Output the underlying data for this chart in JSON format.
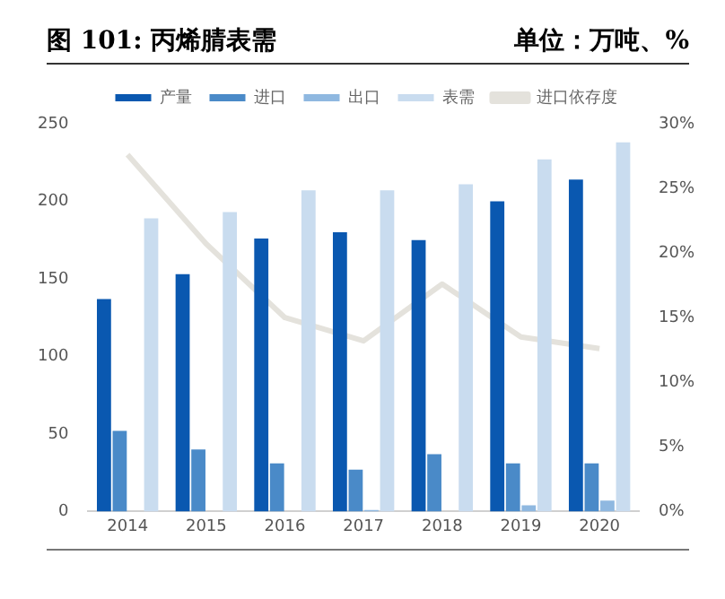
{
  "chart_data": {
    "type": "bar",
    "title": "图 101: 丙烯腈表需",
    "subtitle": "单位：万吨、%",
    "categories": [
      "2014",
      "2015",
      "2016",
      "2017",
      "2018",
      "2019",
      "2020"
    ],
    "series": [
      {
        "name": "产量",
        "color": "#0a58b0",
        "values": [
          137,
          153,
          176,
          180,
          175,
          200,
          214
        ]
      },
      {
        "name": "进口",
        "color": "#4a8ac8",
        "values": [
          52,
          40,
          31,
          27,
          37,
          31,
          31
        ]
      },
      {
        "name": "出口",
        "color": "#8fb8e0",
        "values": [
          0,
          0,
          0,
          1,
          0,
          4,
          7
        ]
      },
      {
        "name": "表需",
        "color": "#c9dcef",
        "values": [
          189,
          193,
          207,
          207,
          211,
          227,
          238
        ]
      },
      {
        "name": "进口依存度",
        "color": "#e4e2dc",
        "type": "line",
        "axis": "y2",
        "values": [
          27.6,
          20.7,
          15.0,
          13.2,
          17.6,
          13.5,
          12.6
        ]
      }
    ],
    "ylim": [
      0,
      250
    ],
    "yticks": [
      0,
      50,
      100,
      150,
      200,
      250
    ],
    "y2lim": [
      0,
      30
    ],
    "y2ticks": [
      {
        "value": 0,
        "label": "0%"
      },
      {
        "value": 5,
        "label": "5%"
      },
      {
        "value": 10,
        "label": "10%"
      },
      {
        "value": 15,
        "label": "15%"
      },
      {
        "value": 20,
        "label": "20%"
      },
      {
        "value": 25,
        "label": "25%"
      },
      {
        "value": 30,
        "label": "30%"
      }
    ],
    "legend": "top",
    "marker": "none",
    "line_style": "solid"
  }
}
